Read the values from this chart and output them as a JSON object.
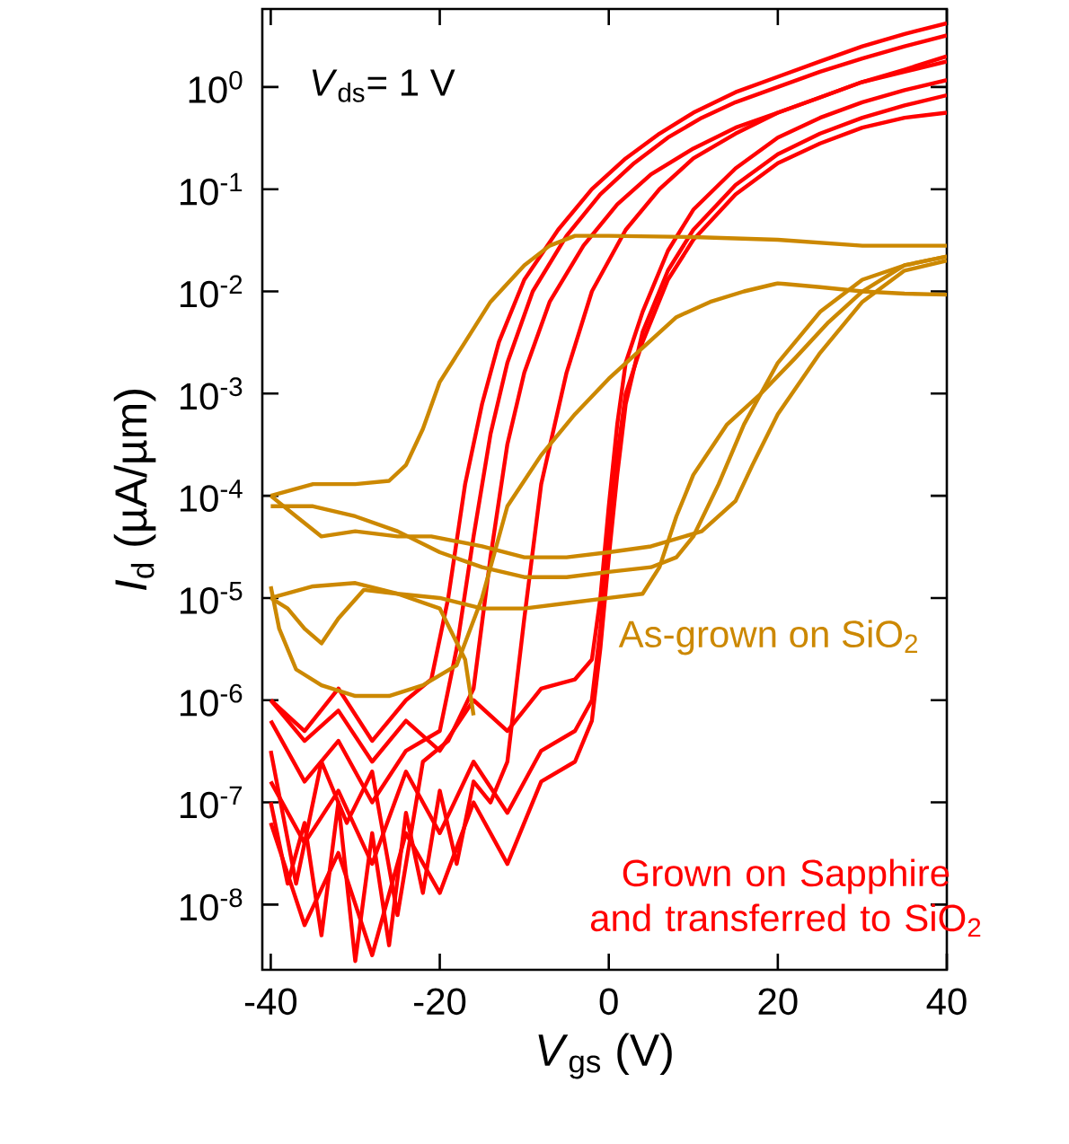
{
  "chart_data": {
    "type": "line",
    "xlabel": "*V*$_{gs}$ (V)",
    "ylabel": "*I*$_{d}$ (µA/µm)",
    "annotations": [
      "*V*$_{ds}$= 1 V"
    ],
    "log": "y",
    "legend": false,
    "xlim": [
      -41,
      40
    ],
    "xticks": [
      -40,
      -20,
      0,
      20,
      40
    ],
    "ylim": [
      2.3e-09,
      5.8
    ],
    "yticks": [
      {
        "value": 1e-08,
        "label": "10$^{-8}$"
      },
      {
        "value": 1e-07,
        "label": "10$^{-7}$"
      },
      {
        "value": 1e-06,
        "label": "10$^{-6}$"
      },
      {
        "value": 1e-05,
        "label": "10$^{-5}$"
      },
      {
        "value": 0.0001,
        "label": "10$^{-4}$"
      },
      {
        "value": 0.001,
        "label": "10$^{-3}$"
      },
      {
        "value": 0.01,
        "label": "10$^{-2}$"
      },
      {
        "value": 0.1,
        "label": "10$^{-1}$"
      },
      {
        "value": 1,
        "label": "10$^{0}$"
      }
    ],
    "series": [
      {
        "name": "Grown on Sapphire and transferred to SiO$_{2}$",
        "color": "#ff0000",
        "x": [
          -40,
          -36,
          -32,
          -28,
          -24,
          -21,
          -19,
          -17,
          -15,
          -13,
          -10,
          -6,
          -2,
          2,
          6,
          10,
          15,
          20,
          25,
          30,
          35,
          40
        ],
        "values": [
          1e-06,
          5e-07,
          1.3e-06,
          4e-07,
          1e-06,
          1.6e-06,
          1e-05,
          0.00013,
          0.00079,
          0.0032,
          0.013,
          0.04,
          0.1,
          0.2,
          0.35,
          0.56,
          0.89,
          1.26,
          1.78,
          2.5,
          3.3,
          4.2
        ]
      },
      {
        "color": "#ff0000",
        "x": [
          -40,
          -36,
          -32,
          -28,
          -24,
          -20,
          -18,
          -16,
          -14,
          -12,
          -9,
          -5,
          -1,
          3,
          7,
          11,
          15,
          20,
          25,
          30,
          35,
          40
        ],
        "values": [
          6.3e-07,
          1.6e-07,
          4e-07,
          1e-07,
          3.2e-07,
          5e-07,
          3.2e-06,
          4e-05,
          0.0004,
          0.002,
          0.01,
          0.035,
          0.089,
          0.18,
          0.32,
          0.5,
          0.71,
          1.0,
          1.41,
          1.9,
          2.5,
          3.2
        ]
      },
      {
        "color": "#ff0000",
        "x": [
          -40,
          -37,
          -34,
          -31,
          -28,
          -25,
          -22,
          -19,
          -16,
          -14,
          -12,
          -10,
          -7,
          -3,
          1,
          5,
          10,
          15,
          20,
          25,
          30,
          35,
          40
        ],
        "values": [
          3.2e-07,
          1.6e-08,
          2.5e-07,
          6.3e-08,
          2e-07,
          7.9e-09,
          2.5e-07,
          4e-07,
          1.3e-06,
          2.5e-05,
          0.00032,
          0.0016,
          0.0079,
          0.028,
          0.071,
          0.14,
          0.25,
          0.4,
          0.56,
          0.79,
          1.12,
          1.41,
          1.78
        ]
      },
      {
        "color": "#ff0000",
        "x": [
          -40,
          -38,
          -36,
          -34,
          -32,
          -30,
          -28,
          -26,
          -24,
          -22,
          -20,
          -18,
          -16,
          -14,
          -12,
          -10,
          -8,
          -5,
          -2,
          2,
          6,
          10,
          15,
          20,
          25,
          30,
          35,
          40
        ],
        "values": [
          1e-07,
          1.6e-08,
          6.3e-08,
          5e-09,
          1e-07,
          2.8e-09,
          5e-08,
          4e-09,
          7.9e-08,
          1.3e-08,
          1.3e-07,
          2.5e-08,
          1.6e-07,
          1e-07,
          2.5e-07,
          6.3e-06,
          0.00013,
          0.0016,
          0.01,
          0.04,
          0.1,
          0.2,
          0.35,
          0.56,
          0.79,
          1.12,
          1.48,
          2.0
        ]
      },
      {
        "color": "#ff0000",
        "x": [
          -40,
          -36,
          -32,
          -28,
          -24,
          -20,
          -16,
          -12,
          -8,
          -4,
          -2,
          -1,
          0,
          1,
          2,
          4,
          7,
          10,
          15,
          20,
          25,
          30,
          35,
          40
        ],
        "values": [
          1.6e-07,
          4e-08,
          1.3e-07,
          2.5e-08,
          2e-07,
          5e-08,
          2.5e-07,
          7.9e-08,
          3.2e-07,
          5e-07,
          1e-06,
          5e-06,
          4e-05,
          0.00025,
          0.001,
          0.0032,
          0.013,
          0.032,
          0.089,
          0.18,
          0.28,
          0.4,
          0.5,
          0.56
        ]
      },
      {
        "color": "#ff0000",
        "x": [
          -40,
          -36,
          -32,
          -28,
          -24,
          -20,
          -16,
          -12,
          -8,
          -4,
          -2,
          -1,
          0,
          1,
          2,
          4,
          7,
          10,
          15,
          20,
          25,
          30,
          35,
          40
        ],
        "values": [
          1e-06,
          4e-07,
          7.9e-07,
          2.5e-07,
          6.3e-07,
          3.2e-07,
          1e-06,
          5e-07,
          1.3e-06,
          1.6e-06,
          2.5e-06,
          1e-05,
          7.9e-05,
          0.0005,
          0.002,
          0.0063,
          0.025,
          0.063,
          0.16,
          0.32,
          0.5,
          0.71,
          0.93,
          1.17
        ]
      },
      {
        "color": "#ff0000",
        "x": [
          -40,
          -36,
          -32,
          -28,
          -24,
          -20,
          -16,
          -12,
          -8,
          -4,
          -2,
          -1,
          0,
          1,
          2,
          4,
          7,
          10,
          15,
          20,
          25,
          30,
          35,
          40
        ],
        "values": [
          6.3e-08,
          6.3e-09,
          3.2e-08,
          3.2e-09,
          5e-08,
          1.3e-08,
          1e-07,
          2.5e-08,
          1.6e-07,
          2.5e-07,
          6.3e-07,
          3.2e-06,
          2.5e-05,
          0.00016,
          0.00079,
          0.004,
          0.016,
          0.04,
          0.11,
          0.22,
          0.35,
          0.5,
          0.66,
          0.83
        ]
      },
      {
        "name": "As-grown on SiO$_{2}$",
        "color": "#cc8800",
        "x": [
          -40,
          -35,
          -30,
          -26,
          -24,
          -22,
          -20,
          -17,
          -14,
          -10,
          -7,
          -4,
          0,
          10,
          20,
          30,
          40
        ],
        "values": [
          0.0001,
          0.00013,
          0.00013,
          0.00014,
          0.0002,
          0.00045,
          0.0013,
          0.0032,
          0.0079,
          0.018,
          0.028,
          0.035,
          0.035,
          0.034,
          0.032,
          0.028,
          0.028
        ]
      },
      {
        "color": "#cc8800",
        "x": [
          -40,
          -37,
          -34,
          -30,
          -25,
          -21,
          -15,
          -10,
          -5,
          0,
          5,
          11,
          15,
          17,
          20,
          25,
          30,
          35,
          40
        ],
        "values": [
          0.0001,
          6.3e-05,
          4e-05,
          4.5e-05,
          4e-05,
          4e-05,
          3.2e-05,
          2.5e-05,
          2.5e-05,
          2.8e-05,
          3.2e-05,
          4.5e-05,
          8.9e-05,
          0.0002,
          0.00063,
          0.0025,
          0.0079,
          0.016,
          0.02
        ]
      },
      {
        "color": "#cc8800",
        "x": [
          -40,
          -35,
          -30,
          -25,
          -20,
          -15,
          -10,
          -5,
          0,
          5,
          8,
          10,
          13,
          16,
          20,
          25,
          30,
          35,
          40
        ],
        "values": [
          7.9e-05,
          7.9e-05,
          6.3e-05,
          4.5e-05,
          2.8e-05,
          2e-05,
          1.6e-05,
          1.6e-05,
          1.8e-05,
          2e-05,
          2.5e-05,
          4e-05,
          0.00013,
          0.0005,
          0.002,
          0.0063,
          0.013,
          0.018,
          0.022
        ]
      },
      {
        "color": "#cc8800",
        "x": [
          -40,
          -35,
          -30,
          -25,
          -20,
          -15,
          -10,
          -5,
          0,
          4,
          6,
          8,
          10,
          14,
          18,
          22,
          26,
          30,
          35,
          40
        ],
        "values": [
          1e-05,
          1.3e-05,
          1.4e-05,
          1.1e-05,
          1e-05,
          7.9e-06,
          7.9e-06,
          8.9e-06,
          1e-05,
          1.1e-05,
          2e-05,
          6.3e-05,
          0.00016,
          0.0005,
          0.001,
          0.0022,
          0.005,
          0.01,
          0.018,
          0.022
        ]
      },
      {
        "color": "#cc8800",
        "x": [
          -40,
          -39,
          -37,
          -34,
          -30,
          -26,
          -22,
          -18,
          -15,
          -12,
          -8,
          -4,
          0,
          4,
          8,
          12,
          16,
          20,
          25,
          30,
          35,
          40
        ],
        "values": [
          1.3e-05,
          5e-06,
          2e-06,
          1.4e-06,
          1.1e-06,
          1.1e-06,
          1.4e-06,
          2.2e-06,
          1e-05,
          7.9e-05,
          0.00025,
          0.00063,
          0.0014,
          0.0028,
          0.0056,
          0.0079,
          0.01,
          0.012,
          0.011,
          0.01,
          0.0095,
          0.0093
        ]
      },
      {
        "color": "#cc8800",
        "x": [
          -40,
          -38,
          -36,
          -34,
          -32,
          -29,
          -25,
          -20,
          -17,
          -16
        ],
        "values": [
          1e-05,
          7.9e-06,
          5e-06,
          3.6e-06,
          6.3e-06,
          1.2e-05,
          1.1e-05,
          7.9e-06,
          2.5e-06,
          7.1e-07
        ]
      }
    ]
  }
}
